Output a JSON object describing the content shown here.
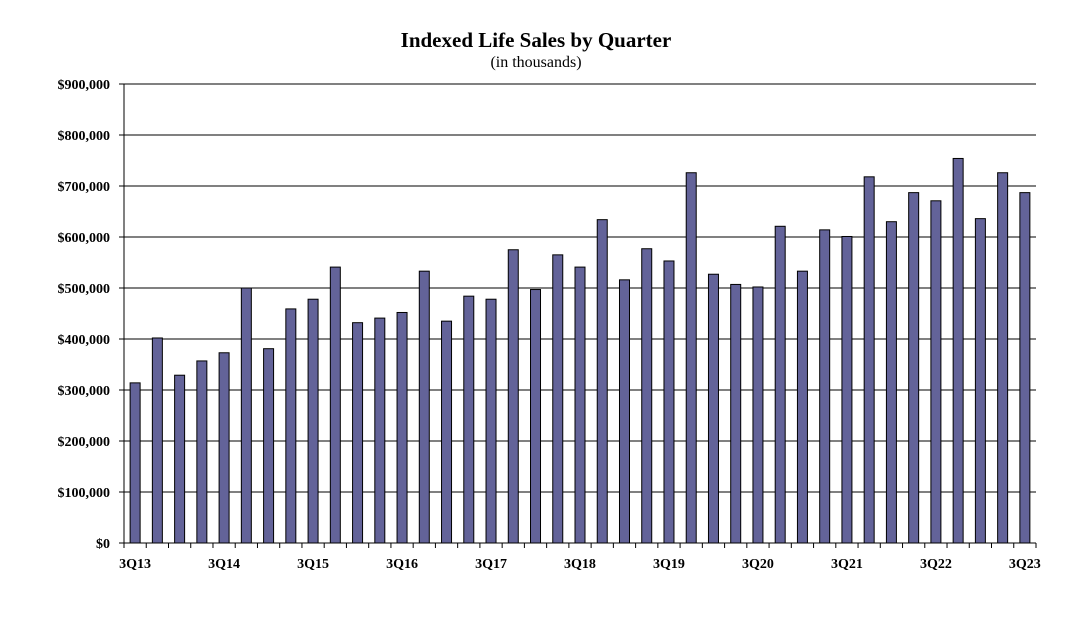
{
  "chart_data": {
    "type": "bar",
    "title": "Indexed Life Sales by Quarter",
    "subtitle": "(in thousands)",
    "ylabel": "",
    "xlabel": "",
    "ylim": [
      0,
      900000
    ],
    "yticks": [
      0,
      100000,
      200000,
      300000,
      400000,
      500000,
      600000,
      700000,
      800000,
      900000
    ],
    "ytick_labels": [
      "$0",
      "$100,000",
      "$200,000",
      "$300,000",
      "$400,000",
      "$500,000",
      "$600,000",
      "$700,000",
      "$800,000",
      "$900,000"
    ],
    "categories": [
      "3Q13",
      "4Q13",
      "1Q14",
      "2Q14",
      "3Q14",
      "4Q14",
      "1Q15",
      "2Q15",
      "3Q15",
      "4Q15",
      "1Q16",
      "2Q16",
      "3Q16",
      "4Q16",
      "1Q17",
      "2Q17",
      "3Q17",
      "4Q17",
      "1Q18",
      "2Q18",
      "3Q18",
      "4Q18",
      "1Q19",
      "2Q19",
      "3Q19",
      "4Q19",
      "1Q20",
      "2Q20",
      "3Q20",
      "4Q20",
      "1Q21",
      "2Q21",
      "3Q21",
      "4Q21",
      "1Q22",
      "2Q22",
      "3Q22",
      "4Q22",
      "1Q23",
      "2Q23",
      "3Q23"
    ],
    "values": [
      314000,
      402000,
      329000,
      357000,
      373000,
      500000,
      381000,
      459000,
      478000,
      541000,
      432000,
      441000,
      452000,
      533000,
      435000,
      484000,
      478000,
      575000,
      497000,
      565000,
      541000,
      634000,
      516000,
      577000,
      553000,
      726000,
      527000,
      507000,
      502000,
      621000,
      533000,
      614000,
      601000,
      718000,
      630000,
      687000,
      671000,
      754000,
      636000,
      726000,
      687000
    ],
    "xtick_labels": [
      "3Q13",
      "3Q14",
      "3Q15",
      "3Q16",
      "3Q17",
      "3Q18",
      "3Q19",
      "3Q20",
      "3Q21",
      "3Q22",
      "3Q23"
    ],
    "bar_color": "#636399",
    "grid": true,
    "legend": false
  }
}
